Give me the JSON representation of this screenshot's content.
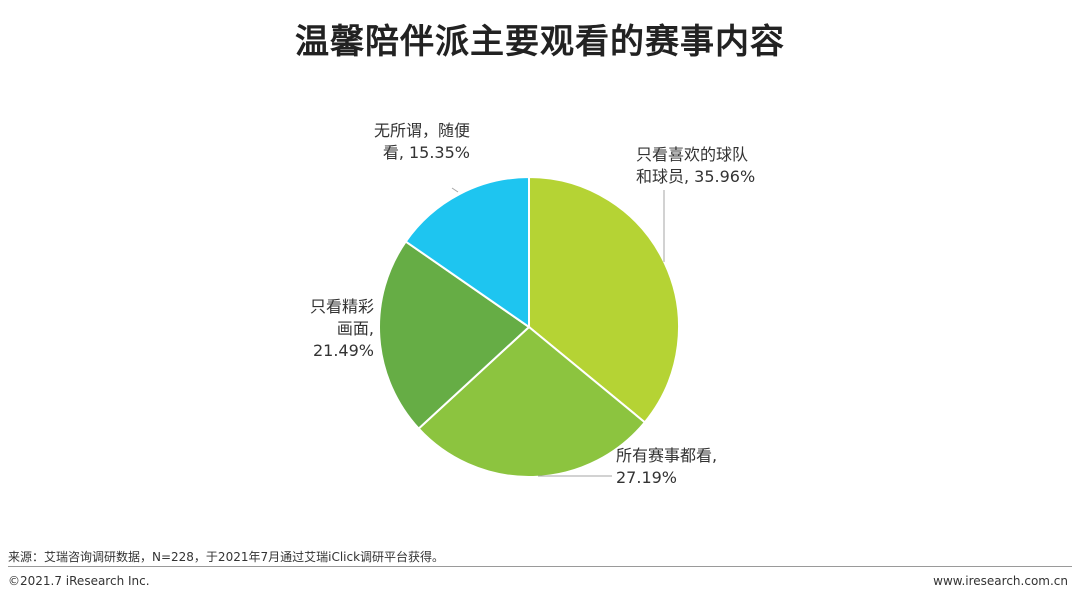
{
  "header": {
    "title": "温馨陪伴派主要观看的赛事内容"
  },
  "chart_data": {
    "type": "pie",
    "title": "温馨陪伴派主要观看的赛事内容",
    "slices": [
      {
        "name": "只看喜欢的球队和球员",
        "value": 35.96,
        "value_label": "35.96%",
        "color": "#b5d334",
        "label_lines": [
          "只看喜欢的球队",
          "和球员, 35.96%"
        ]
      },
      {
        "name": "所有赛事都看",
        "value": 27.19,
        "value_label": "27.19%",
        "color": "#8cc43f",
        "label_lines": [
          "所有赛事都看,",
          "27.19%"
        ]
      },
      {
        "name": "只看精彩画面",
        "value": 21.49,
        "value_label": "21.49%",
        "color": "#66ad45",
        "label_lines": [
          "只看精彩",
          "画面,",
          "21.49%"
        ]
      },
      {
        "name": "无所谓，随便看",
        "value": 15.35,
        "value_label": "15.35%",
        "color": "#1ec5f0",
        "label_lines": [
          "无所谓，随便",
          "看, 15.35%"
        ]
      }
    ],
    "start_angle": "12 o'clock",
    "direction": "clockwise",
    "legend": "none"
  },
  "footer": {
    "source": "来源：艾瑞咨询调研数据，N=228，于2021年7月通过艾瑞iClick调研平台获得。",
    "copyright": "©2021.7 iResearch Inc.",
    "site": "www.iresearch.com.cn"
  }
}
